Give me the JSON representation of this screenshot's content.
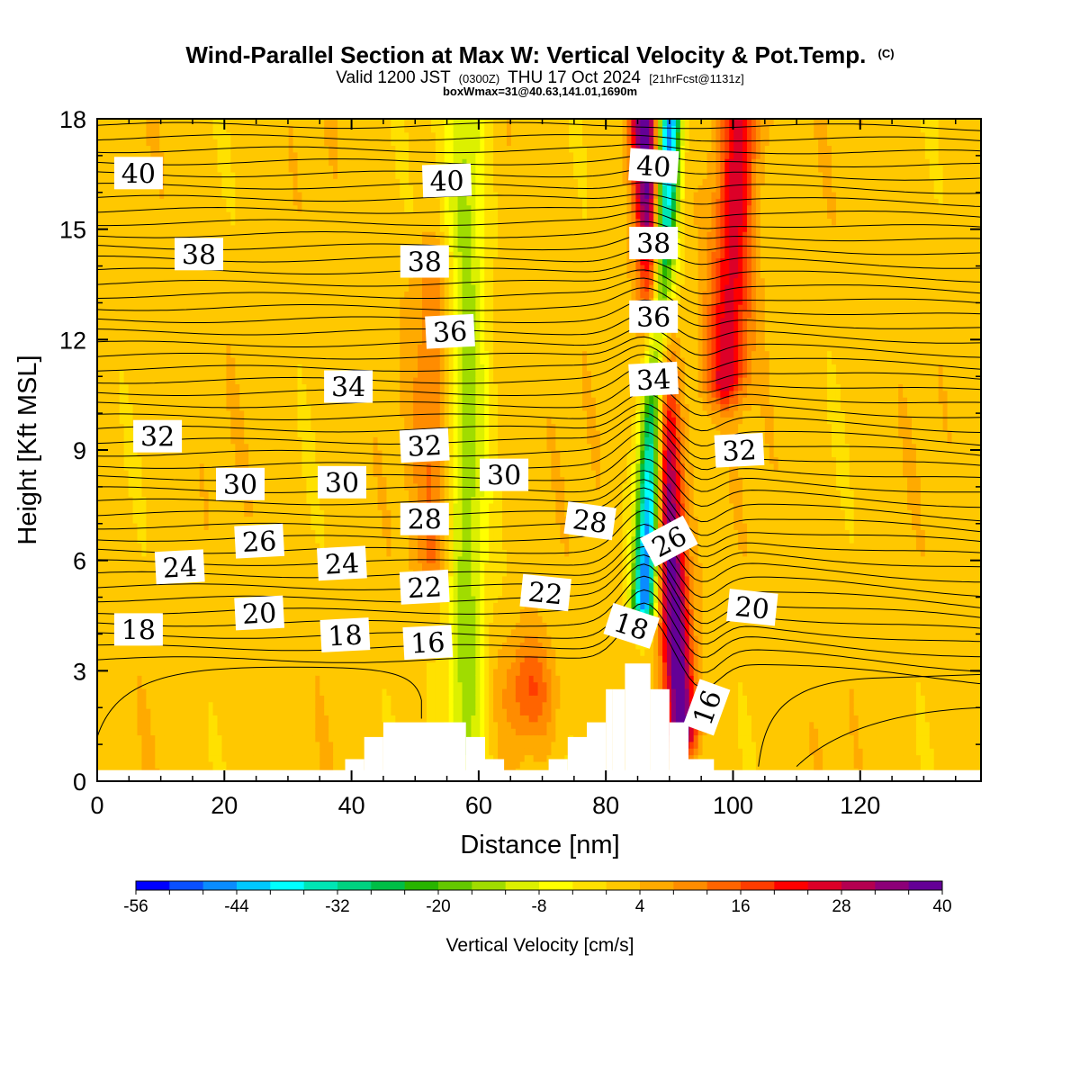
{
  "header": {
    "title": "Wind-Parallel Section at Max W: Vertical Velocity & Pot.Temp.",
    "title_mark": "(C)",
    "valid_prefix": "Valid 1200 JST",
    "valid_utc": "(0300Z)",
    "valid_date": "THU 17 Oct 2024",
    "valid_forecast": "[21hrFcst@1131z]",
    "box_info": "boxWmax=31@40.63,141.01,1690m"
  },
  "chart_data": {
    "type": "heatmap",
    "title": "Wind-Parallel Section at Max W: Vertical Velocity & Pot.Temp.",
    "xlabel": "Distance [nm]",
    "ylabel": "Height [Kft MSL]",
    "xlim": [
      0,
      139
    ],
    "ylim": [
      0,
      18
    ],
    "x_ticks": [
      0,
      20,
      40,
      60,
      80,
      100,
      120
    ],
    "y_ticks": [
      0,
      3,
      6,
      9,
      12,
      15,
      18
    ],
    "grid": false,
    "colorbar": {
      "label": "Vertical Velocity [cm/s]",
      "min": -56,
      "max": 40,
      "step": 4,
      "tick_values": [
        -56,
        -44,
        -32,
        -20,
        -8,
        4,
        16,
        28,
        40
      ],
      "colors": [
        "#0000ff",
        "#0a50ff",
        "#0a8cff",
        "#00c8ff",
        "#00ffff",
        "#00e6b4",
        "#00d280",
        "#00be46",
        "#28b400",
        "#64c800",
        "#a0dc00",
        "#dcf000",
        "#ffff00",
        "#ffe100",
        "#ffc800",
        "#ffaa00",
        "#ff8c00",
        "#ff6400",
        "#ff3c00",
        "#ff0000",
        "#dc0028",
        "#b40050",
        "#8c0078",
        "#640096"
      ]
    },
    "velocity_field": {
      "description": "vertical velocity cm/s",
      "features": [
        {
          "type": "background",
          "value": 2
        },
        {
          "type": "updraft_column",
          "x_at_top": 86,
          "x_at_bottom": 92,
          "value": 40,
          "height_range": [
            1.5,
            18
          ]
        },
        {
          "type": "updraft_column",
          "x_at_top": 101,
          "x_at_bottom": 96,
          "value": 26,
          "height_range": [
            11,
            18
          ]
        },
        {
          "type": "downdraft_column",
          "x_at_top": 90,
          "x_at_bottom": 85,
          "value": -48,
          "height_range": [
            5,
            18
          ]
        },
        {
          "type": "downdraft_column",
          "x_at_top": 58,
          "x_at_bottom": 58,
          "value": -14,
          "height_range": [
            0,
            18
          ]
        },
        {
          "type": "updraft_column",
          "x_at_top": 53,
          "x_at_bottom": 53,
          "value": 12,
          "height_range": [
            6,
            14
          ]
        },
        {
          "type": "updraft_patch",
          "x": 68,
          "y": 2.5,
          "value": 16
        }
      ]
    },
    "theta_contours": {
      "description": "potential temperature isentropes",
      "labels": [
        {
          "text": "40",
          "x": 6.5,
          "y": 16.5,
          "angle": 0
        },
        {
          "text": "40",
          "x": 55,
          "y": 16.3,
          "angle": -2
        },
        {
          "text": "40",
          "x": 87.5,
          "y": 16.7,
          "angle": 4
        },
        {
          "text": "38",
          "x": 16,
          "y": 14.3,
          "angle": 0
        },
        {
          "text": "38",
          "x": 51.5,
          "y": 14.1,
          "angle": 0
        },
        {
          "text": "38",
          "x": 87.5,
          "y": 14.6,
          "angle": 0
        },
        {
          "text": "36",
          "x": 55.5,
          "y": 12.2,
          "angle": -3
        },
        {
          "text": "36",
          "x": 87.5,
          "y": 12.6,
          "angle": 0
        },
        {
          "text": "34",
          "x": 39.5,
          "y": 10.7,
          "angle": 0
        },
        {
          "text": "34",
          "x": 87.5,
          "y": 10.9,
          "angle": -3
        },
        {
          "text": "32",
          "x": 9.5,
          "y": 9.35,
          "angle": 0
        },
        {
          "text": "32",
          "x": 51.5,
          "y": 9.1,
          "angle": -3
        },
        {
          "text": "32",
          "x": 101,
          "y": 8.97,
          "angle": -3
        },
        {
          "text": "30",
          "x": 22.5,
          "y": 8.05,
          "angle": 0
        },
        {
          "text": "30",
          "x": 38.5,
          "y": 8.1,
          "angle": 0
        },
        {
          "text": "30",
          "x": 64,
          "y": 8.3,
          "angle": 0
        },
        {
          "text": "28",
          "x": 51.5,
          "y": 7.1,
          "angle": 0
        },
        {
          "text": "28",
          "x": 77.5,
          "y": 7.05,
          "angle": 8
        },
        {
          "text": "26",
          "x": 25.5,
          "y": 6.5,
          "angle": -3
        },
        {
          "text": "26",
          "x": 90,
          "y": 6.5,
          "angle": -28
        },
        {
          "text": "24",
          "x": 13,
          "y": 5.8,
          "angle": -3
        },
        {
          "text": "24",
          "x": 38.5,
          "y": 5.9,
          "angle": -3
        },
        {
          "text": "22",
          "x": 51.5,
          "y": 5.25,
          "angle": -3
        },
        {
          "text": "22",
          "x": 70.5,
          "y": 5.1,
          "angle": 6
        },
        {
          "text": "20",
          "x": 25.5,
          "y": 4.55,
          "angle": -3
        },
        {
          "text": "20",
          "x": 103,
          "y": 4.7,
          "angle": 6
        },
        {
          "text": "18",
          "x": 6.5,
          "y": 4.1,
          "angle": 0
        },
        {
          "text": "18",
          "x": 39,
          "y": 3.95,
          "angle": -3
        },
        {
          "text": "18",
          "x": 84,
          "y": 4.2,
          "angle": 18
        },
        {
          "text": "16",
          "x": 52,
          "y": 3.75,
          "angle": -3
        },
        {
          "text": "16",
          "x": 96,
          "y": 2.0,
          "angle": -70
        }
      ]
    },
    "terrain": [
      {
        "x0": 39,
        "x1": 42,
        "top": 0.6
      },
      {
        "x0": 42,
        "x1": 45,
        "top": 1.2
      },
      {
        "x0": 45,
        "x1": 58,
        "top": 1.6
      },
      {
        "x0": 58,
        "x1": 61,
        "top": 1.2
      },
      {
        "x0": 61,
        "x1": 64,
        "top": 0.6
      },
      {
        "x0": 71,
        "x1": 74,
        "top": 0.6
      },
      {
        "x0": 74,
        "x1": 77,
        "top": 1.2
      },
      {
        "x0": 77,
        "x1": 80,
        "top": 1.6
      },
      {
        "x0": 80,
        "x1": 81,
        "top": 2.5
      },
      {
        "x0": 81,
        "x1": 83,
        "top": 2.5
      },
      {
        "x0": 83,
        "x1": 87,
        "top": 3.2
      },
      {
        "x0": 87,
        "x1": 90,
        "top": 2.5
      },
      {
        "x0": 90,
        "x1": 93,
        "top": 1.6
      },
      {
        "x0": 93,
        "x1": 97,
        "top": 0.6
      },
      {
        "x0": 0,
        "x1": 139,
        "top": 0.3
      }
    ]
  }
}
